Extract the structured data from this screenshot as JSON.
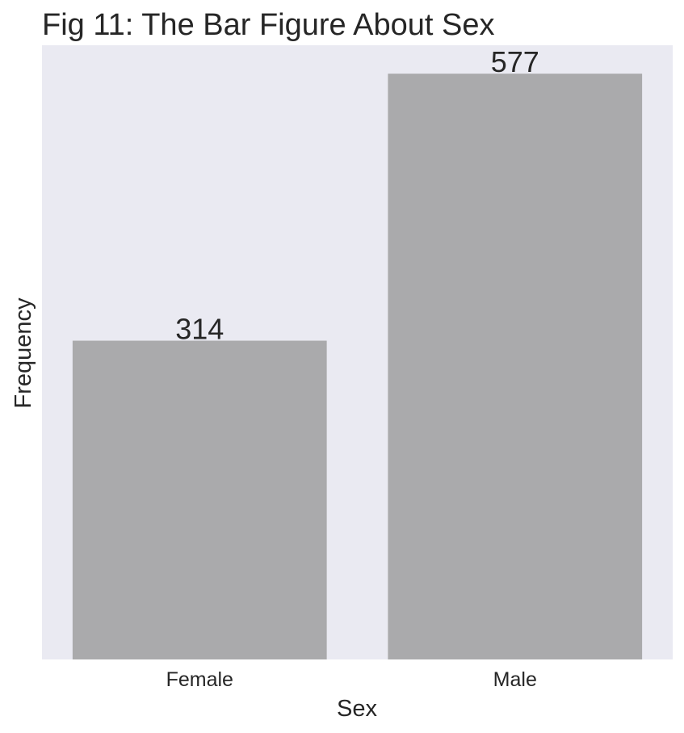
{
  "chart_data": {
    "type": "bar",
    "title": "Fig 11: The Bar Figure About Sex",
    "xlabel": "Sex",
    "ylabel": "Frequency",
    "categories": [
      "Female",
      "Male"
    ],
    "values": [
      314,
      577
    ],
    "data_labels": [
      "314",
      "577"
    ],
    "ylim": [
      0,
      605
    ],
    "grid": false,
    "legend": "none",
    "y_ticks_shown": false,
    "colors": {
      "bar": "#aaaaac",
      "plot_background": "#eaeaf2",
      "text": "#262626"
    }
  }
}
